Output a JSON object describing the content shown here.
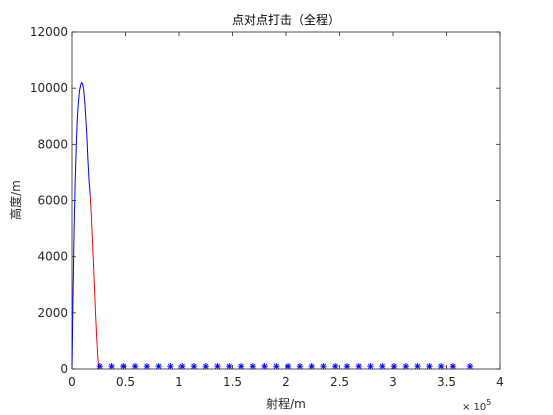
{
  "chart_data": {
    "type": "line",
    "title": "点对点打击（全程）",
    "xlabel": "射程/m",
    "ylabel": "高度/m",
    "x_multiplier_label": "× 10",
    "x_multiplier_exponent": "5",
    "xlim": [
      0,
      400000
    ],
    "ylim": [
      0,
      12000
    ],
    "xticks": [
      0,
      50000,
      100000,
      150000,
      200000,
      250000,
      300000,
      350000,
      400000
    ],
    "xtick_labels": [
      "0",
      "0.5",
      "1",
      "1.5",
      "2",
      "2.5",
      "3",
      "3.5",
      "4"
    ],
    "yticks": [
      0,
      2000,
      4000,
      6000,
      8000,
      10000,
      12000
    ],
    "ytick_labels": [
      "0",
      "2000",
      "4000",
      "6000",
      "8000",
      "10000",
      "12000"
    ],
    "grid": false,
    "colors": {
      "ascent": "#0000ff",
      "descent": "#ff0000",
      "markers": "#0000ff",
      "axes": "#262626"
    },
    "series": [
      {
        "style": "blue-line",
        "x": [
          0,
          1000,
          2000,
          3000,
          4000,
          5000,
          6000,
          7000,
          8000,
          9000,
          10000,
          11000,
          12000,
          13000,
          14000,
          15000,
          16000,
          17000
        ],
        "y": [
          0,
          2800,
          5000,
          6700,
          8000,
          8900,
          9500,
          9900,
          10100,
          10200,
          10150,
          9900,
          9500,
          8900,
          8200,
          7400,
          6700,
          6200
        ]
      },
      {
        "style": "red-line",
        "x": [
          17000,
          18000,
          19000,
          20000,
          21000,
          22000,
          23000,
          24000,
          25000
        ],
        "y": [
          6200,
          5500,
          4700,
          3800,
          2900,
          2000,
          1200,
          500,
          0
        ]
      },
      {
        "style": "blue-star-markers",
        "x": [
          26000,
          37000,
          48000,
          59000,
          70000,
          81000,
          92000,
          103000,
          114000,
          125000,
          136000,
          147000,
          158000,
          169000,
          180000,
          191000,
          202000,
          213000,
          224000,
          235000,
          246000,
          257000,
          268000,
          279000,
          290000,
          301000,
          312000,
          323000,
          334000,
          345000,
          356000,
          372000
        ],
        "y": [
          100,
          100,
          100,
          100,
          100,
          100,
          100,
          100,
          100,
          100,
          100,
          100,
          100,
          100,
          100,
          100,
          100,
          100,
          100,
          100,
          100,
          100,
          100,
          100,
          100,
          100,
          100,
          100,
          100,
          100,
          100,
          100
        ]
      }
    ]
  }
}
